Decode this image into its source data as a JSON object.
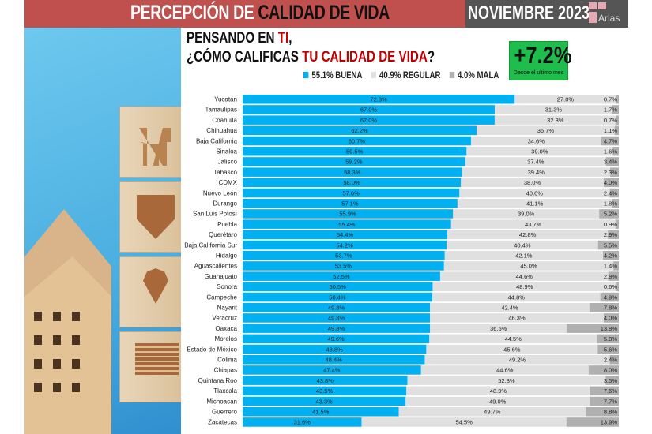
{
  "header": {
    "title_part1": "PERCEPCIÓN DE ",
    "title_part2": "CALIDAD DE VIDA",
    "date": "NOVIEMBRE 2023",
    "logo_text": "Arias"
  },
  "question": {
    "line1_a": "PENSANDO EN ",
    "line1_b": "TI",
    "line1_c": ",",
    "line2_a": "¿CÓMO CALIFICAS ",
    "line2_b": "TU CALIDAD DE VIDA",
    "line2_c": "?"
  },
  "badge": {
    "value": "+7.2%",
    "caption": "Desde el ultimo mes",
    "color": "#1fbd4c"
  },
  "legend": [
    {
      "label": "55.1% BUENA",
      "color": "#00b0f0"
    },
    {
      "label": "40.9% REGULAR",
      "color": "#e0e0e0"
    },
    {
      "label": "4.0% MALA",
      "color": "#b0b0b0"
    }
  ],
  "chart_data": {
    "type": "bar",
    "stacked": true,
    "orientation": "horizontal",
    "xlim": [
      0,
      100
    ],
    "series": [
      {
        "name": "BUENA",
        "color": "#00b0f0"
      },
      {
        "name": "REGULAR",
        "color": "#e0e0e0"
      },
      {
        "name": "MALA",
        "color": "#b0b0b0"
      }
    ],
    "categories": [
      "Yucatán",
      "Tamaulipas",
      "Coahuila",
      "Chihuahua",
      "Baja California",
      "Sinaloa",
      "Jalisco",
      "Tabasco",
      "CDMX",
      "Nuevo León",
      "Durango",
      "San Luis Potosí",
      "Puebla",
      "Querétaro",
      "Baja California Sur",
      "Hidalgo",
      "Aguascalientes",
      "Guanajuato",
      "Sonora",
      "Campeche",
      "Nayarit",
      "Veracruz",
      "Oaxaca",
      "Morelos",
      "Estado de México",
      "Colima",
      "Chiapas",
      "Quintana Roo",
      "Tlaxcala",
      "Michoacán",
      "Guerrero",
      "Zacatecas"
    ],
    "buena": [
      72.3,
      67.0,
      67.0,
      62.2,
      60.7,
      59.5,
      59.2,
      58.3,
      58.0,
      57.6,
      57.1,
      55.9,
      55.4,
      54.4,
      54.2,
      53.7,
      53.5,
      52.5,
      50.5,
      50.4,
      49.8,
      49.8,
      49.8,
      49.6,
      48.8,
      48.4,
      47.4,
      43.8,
      43.5,
      43.3,
      41.5,
      31.6
    ],
    "regular": [
      27.0,
      31.3,
      32.3,
      36.7,
      34.6,
      39.0,
      37.4,
      39.4,
      38.0,
      40.0,
      41.1,
      39.0,
      43.7,
      42.8,
      40.4,
      42.1,
      45.0,
      44.6,
      48.9,
      44.8,
      42.4,
      46.3,
      36.5,
      44.5,
      45.6,
      49.2,
      44.6,
      52.8,
      48.9,
      49.0,
      49.7,
      54.5
    ],
    "mala": [
      0.7,
      1.7,
      0.7,
      1.1,
      4.7,
      1.6,
      3.4,
      2.3,
      4.0,
      2.4,
      1.8,
      5.2,
      0.9,
      2.9,
      5.5,
      4.2,
      1.4,
      2.8,
      0.6,
      4.9,
      7.8,
      4.0,
      13.8,
      5.8,
      5.6,
      2.4,
      8.0,
      3.5,
      7.6,
      7.7,
      8.8,
      13.9
    ]
  }
}
